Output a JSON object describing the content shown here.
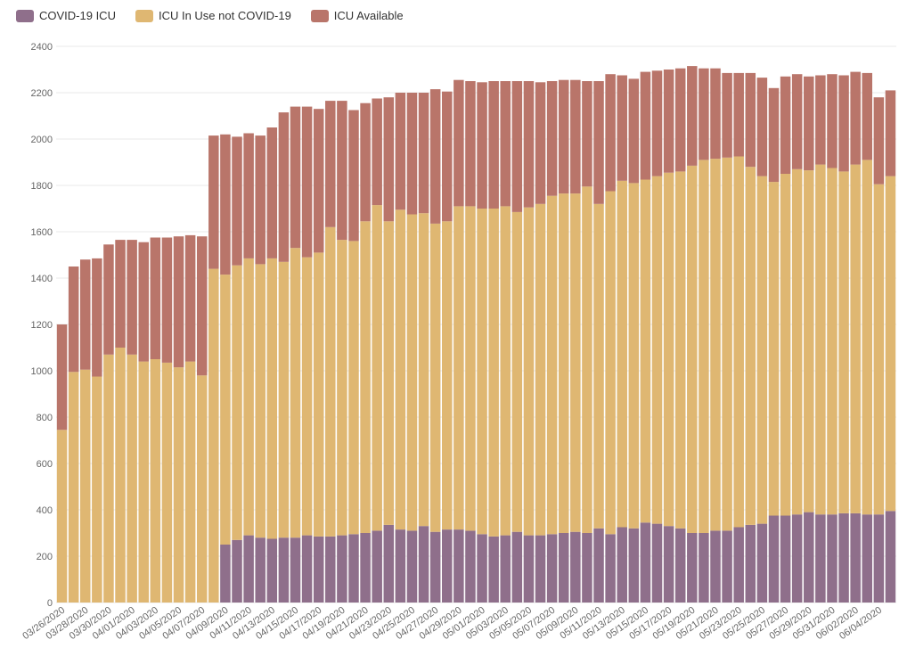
{
  "legend": [
    {
      "label": "COVID-19 ICU",
      "color": "#8f6f8b"
    },
    {
      "label": "ICU In Use not COVID-19",
      "color": "#dfb772"
    },
    {
      "label": "ICU Available",
      "color": "#b9756a"
    }
  ],
  "chart_data": {
    "type": "bar",
    "stacked": true,
    "ylim": [
      0,
      2400
    ],
    "yticks": [
      0,
      200,
      400,
      600,
      800,
      1000,
      1200,
      1400,
      1600,
      1800,
      2000,
      2200,
      2400
    ],
    "grid": true,
    "legend_position": "top-left",
    "categories": [
      "03/26/2020",
      "03/27/2020",
      "03/28/2020",
      "03/29/2020",
      "03/30/2020",
      "03/31/2020",
      "04/01/2020",
      "04/02/2020",
      "04/03/2020",
      "04/04/2020",
      "04/05/2020",
      "04/06/2020",
      "04/07/2020",
      "04/08/2020",
      "04/09/2020",
      "04/10/2020",
      "04/11/2020",
      "04/12/2020",
      "04/13/2020",
      "04/14/2020",
      "04/15/2020",
      "04/16/2020",
      "04/17/2020",
      "04/18/2020",
      "04/19/2020",
      "04/20/2020",
      "04/21/2020",
      "04/22/2020",
      "04/23/2020",
      "04/24/2020",
      "04/25/2020",
      "04/26/2020",
      "04/27/2020",
      "04/28/2020",
      "04/29/2020",
      "04/30/2020",
      "05/01/2020",
      "05/02/2020",
      "05/03/2020",
      "05/04/2020",
      "05/05/2020",
      "05/06/2020",
      "05/07/2020",
      "05/08/2020",
      "05/09/2020",
      "05/10/2020",
      "05/11/2020",
      "05/12/2020",
      "05/13/2020",
      "05/14/2020",
      "05/15/2020",
      "05/16/2020",
      "05/17/2020",
      "05/18/2020",
      "05/19/2020",
      "05/20/2020",
      "05/21/2020",
      "05/22/2020",
      "05/23/2020",
      "05/24/2020",
      "05/25/2020",
      "05/26/2020",
      "05/27/2020",
      "05/28/2020",
      "05/29/2020",
      "05/30/2020",
      "05/31/2020",
      "06/01/2020",
      "06/02/2020",
      "06/03/2020",
      "06/04/2020",
      "06/05/2020"
    ],
    "xtick_labels": [
      "03/26/2020",
      "03/28/2020",
      "03/30/2020",
      "04/01/2020",
      "04/03/2020",
      "04/05/2020",
      "04/07/2020",
      "04/09/2020",
      "04/11/2020",
      "04/13/2020",
      "04/15/2020",
      "04/17/2020",
      "04/19/2020",
      "04/21/2020",
      "04/23/2020",
      "04/25/2020",
      "04/27/2020",
      "04/29/2020",
      "05/01/2020",
      "05/03/2020",
      "05/05/2020",
      "05/07/2020",
      "05/09/2020",
      "05/11/2020",
      "05/13/2020",
      "05/15/2020",
      "05/17/2020",
      "05/19/2020",
      "05/21/2020",
      "05/23/2020",
      "05/25/2020",
      "05/27/2020",
      "05/29/2020",
      "05/31/2020",
      "06/02/2020",
      "06/04/2020"
    ],
    "series": [
      {
        "name": "COVID-19 ICU",
        "color": "#8f6f8b",
        "values": [
          0,
          0,
          0,
          0,
          0,
          0,
          0,
          0,
          0,
          0,
          0,
          0,
          0,
          0,
          250,
          270,
          290,
          280,
          275,
          280,
          280,
          290,
          285,
          285,
          290,
          295,
          300,
          310,
          335,
          315,
          310,
          330,
          305,
          315,
          315,
          310,
          295,
          285,
          290,
          305,
          290,
          290,
          295,
          300,
          305,
          300,
          320,
          295,
          325,
          320,
          345,
          340,
          330,
          320,
          300,
          300,
          310,
          310,
          325,
          335,
          340,
          375,
          375,
          380,
          390,
          380,
          380,
          385,
          385,
          380,
          380,
          395
        ]
      },
      {
        "name": "ICU In Use not COVID-19",
        "color": "#dfb772",
        "values": [
          745,
          995,
          1005,
          975,
          1070,
          1100,
          1070,
          1040,
          1050,
          1035,
          1015,
          1040,
          980,
          1440,
          1165,
          1185,
          1195,
          1180,
          1210,
          1190,
          1250,
          1200,
          1225,
          1335,
          1275,
          1265,
          1345,
          1405,
          1310,
          1380,
          1365,
          1350,
          1330,
          1330,
          1395,
          1400,
          1405,
          1415,
          1420,
          1380,
          1415,
          1430,
          1460,
          1465,
          1460,
          1495,
          1400,
          1480,
          1495,
          1490,
          1480,
          1500,
          1525,
          1540,
          1585,
          1610,
          1605,
          1610,
          1600,
          1545,
          1500,
          1440,
          1475,
          1490,
          1475,
          1510,
          1495,
          1475,
          1505,
          1530,
          1425,
          1445
        ]
      },
      {
        "name": "ICU Available",
        "color": "#b9756a",
        "values": [
          455,
          455,
          475,
          510,
          475,
          465,
          495,
          515,
          525,
          540,
          565,
          545,
          600,
          575,
          605,
          555,
          540,
          555,
          565,
          645,
          610,
          650,
          620,
          545,
          600,
          565,
          510,
          460,
          535,
          505,
          525,
          520,
          580,
          560,
          545,
          540,
          545,
          550,
          540,
          565,
          545,
          525,
          495,
          490,
          490,
          455,
          530,
          505,
          455,
          450,
          465,
          455,
          445,
          445,
          430,
          395,
          390,
          365,
          360,
          405,
          425,
          405,
          420,
          410,
          405,
          385,
          405,
          415,
          400,
          375,
          375,
          370
        ]
      }
    ]
  }
}
